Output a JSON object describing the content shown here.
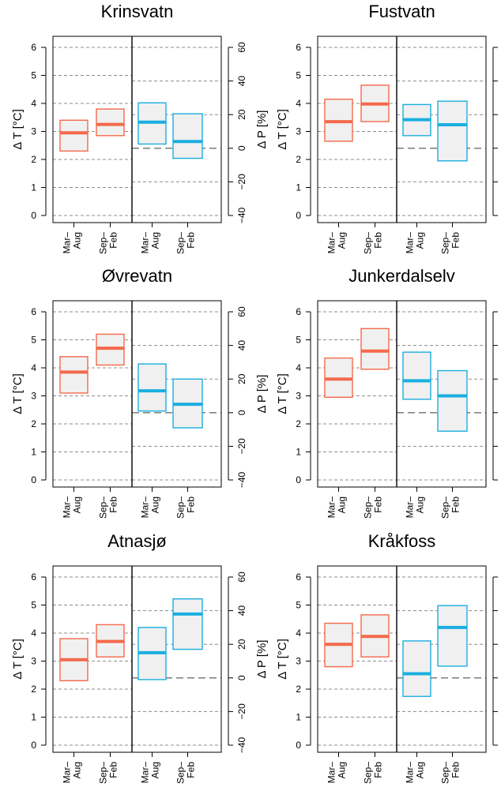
{
  "colors": {
    "temperature": "#f4694b",
    "precipitation": "#1aaee0",
    "box_fill": "#f0f0f0",
    "grid": "#8c8c8c"
  },
  "labels": {
    "left_axis": "Δ T [°C]",
    "right_axis": "Δ P [%]",
    "season_1": [
      "Mar–",
      "Aug"
    ],
    "season_2": [
      "Sep–",
      "Feb"
    ]
  },
  "axes": {
    "left_ylim": [
      0,
      6
    ],
    "left_ticks": [
      0,
      1,
      2,
      3,
      4,
      5,
      6
    ],
    "right_ylim": [
      -40,
      60
    ],
    "right_ticks": [
      -40,
      -20,
      0,
      20,
      40,
      60
    ]
  },
  "chart_data": [
    {
      "type": "box",
      "title": "Krinsvatn",
      "categories": [
        "Mar–Aug",
        "Sep–Feb"
      ],
      "temperature": [
        {
          "low": 2.3,
          "median": 2.95,
          "high": 3.4
        },
        {
          "low": 2.85,
          "median": 3.25,
          "high": 3.8
        }
      ],
      "precipitation": [
        {
          "low": 2.5,
          "median": 15.5,
          "high": 27
        },
        {
          "low": -6,
          "median": 4,
          "high": 20.5
        }
      ]
    },
    {
      "type": "box",
      "title": "Fustvatn",
      "categories": [
        "Mar–Aug",
        "Sep–Feb"
      ],
      "temperature": [
        {
          "low": 2.65,
          "median": 3.35,
          "high": 4.15
        },
        {
          "low": 3.35,
          "median": 3.98,
          "high": 4.65
        }
      ],
      "precipitation": [
        {
          "low": 7.5,
          "median": 17,
          "high": 26
        },
        {
          "low": -7.5,
          "median": 14,
          "high": 28
        }
      ]
    },
    {
      "type": "box",
      "title": "Øvrevatn",
      "categories": [
        "Mar–Aug",
        "Sep–Feb"
      ],
      "temperature": [
        {
          "low": 3.1,
          "median": 3.85,
          "high": 4.4
        },
        {
          "low": 4.1,
          "median": 4.7,
          "high": 5.2
        }
      ],
      "precipitation": [
        {
          "low": 1,
          "median": 13,
          "high": 29
        },
        {
          "low": -9,
          "median": 5,
          "high": 20
        }
      ]
    },
    {
      "type": "box",
      "title": "Junkerdalselv",
      "categories": [
        "Mar–Aug",
        "Sep–Feb"
      ],
      "temperature": [
        {
          "low": 2.95,
          "median": 3.6,
          "high": 4.35
        },
        {
          "low": 3.95,
          "median": 4.6,
          "high": 5.4
        }
      ],
      "precipitation": [
        {
          "low": 8,
          "median": 19,
          "high": 36
        },
        {
          "low": -11,
          "median": 10,
          "high": 25
        }
      ]
    },
    {
      "type": "box",
      "title": "Atnasjø",
      "categories": [
        "Mar–Aug",
        "Sep–Feb"
      ],
      "temperature": [
        {
          "low": 2.3,
          "median": 3.05,
          "high": 3.8
        },
        {
          "low": 3.15,
          "median": 3.7,
          "high": 4.3
        }
      ],
      "precipitation": [
        {
          "low": -1,
          "median": 15,
          "high": 30
        },
        {
          "low": 17,
          "median": 38,
          "high": 47
        }
      ]
    },
    {
      "type": "box",
      "title": "Kråkfoss",
      "categories": [
        "Mar–Aug",
        "Sep–Feb"
      ],
      "temperature": [
        {
          "low": 2.8,
          "median": 3.6,
          "high": 4.35
        },
        {
          "low": 3.15,
          "median": 3.88,
          "high": 4.65
        }
      ],
      "precipitation": [
        {
          "low": -11,
          "median": 2.5,
          "high": 22
        },
        {
          "low": 7,
          "median": 30,
          "high": 43
        }
      ]
    }
  ]
}
